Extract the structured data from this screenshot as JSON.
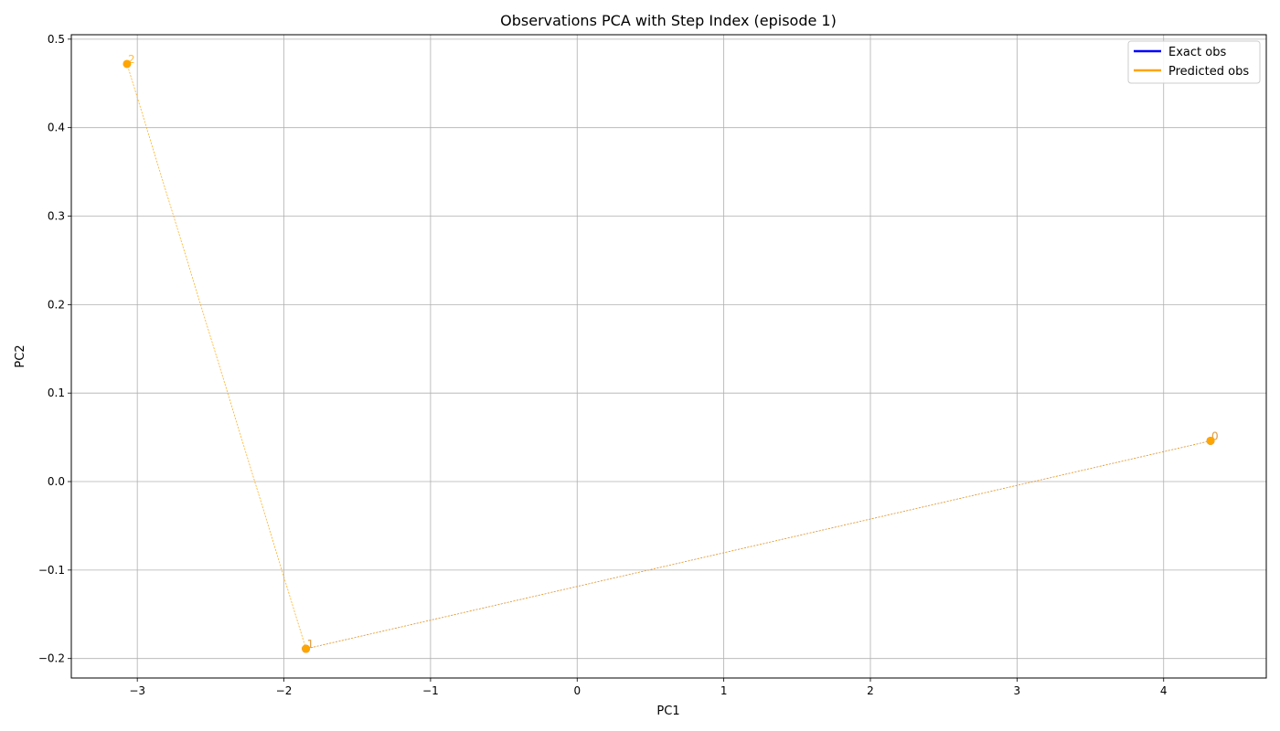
{
  "chart_data": {
    "type": "scatter",
    "title": "Observations PCA with Step Index (episode 1)",
    "xlabel": "PC1",
    "ylabel": "PC2",
    "xlim": [
      -3.45,
      4.7
    ],
    "ylim": [
      -0.222,
      0.505
    ],
    "x_ticks": [
      -3,
      -2,
      -1,
      0,
      1,
      2,
      3,
      4
    ],
    "y_ticks": [
      -0.2,
      -0.1,
      0.0,
      0.1,
      0.2,
      0.3,
      0.4,
      0.5
    ],
    "x_tick_labels": [
      "−3",
      "−2",
      "−1",
      "0",
      "1",
      "2",
      "3",
      "4"
    ],
    "y_tick_labels": [
      "−0.2",
      "−0.1",
      "0.0",
      "0.1",
      "0.2",
      "0.3",
      "0.4",
      "0.5"
    ],
    "grid": true,
    "legend_position": "top-right",
    "series": [
      {
        "name": "Exact obs",
        "color": "#0000ff",
        "points": [
          {
            "x": 4.32,
            "y": 0.046,
            "label": "0"
          },
          {
            "x": -1.85,
            "y": -0.189,
            "label": "1"
          }
        ]
      },
      {
        "name": "Predicted obs",
        "color": "#ffa500",
        "points": [
          {
            "x": 4.32,
            "y": 0.046,
            "label": "0"
          },
          {
            "x": -1.85,
            "y": -0.189,
            "label": "1"
          },
          {
            "x": -3.07,
            "y": 0.472,
            "label": "2"
          }
        ]
      }
    ]
  }
}
